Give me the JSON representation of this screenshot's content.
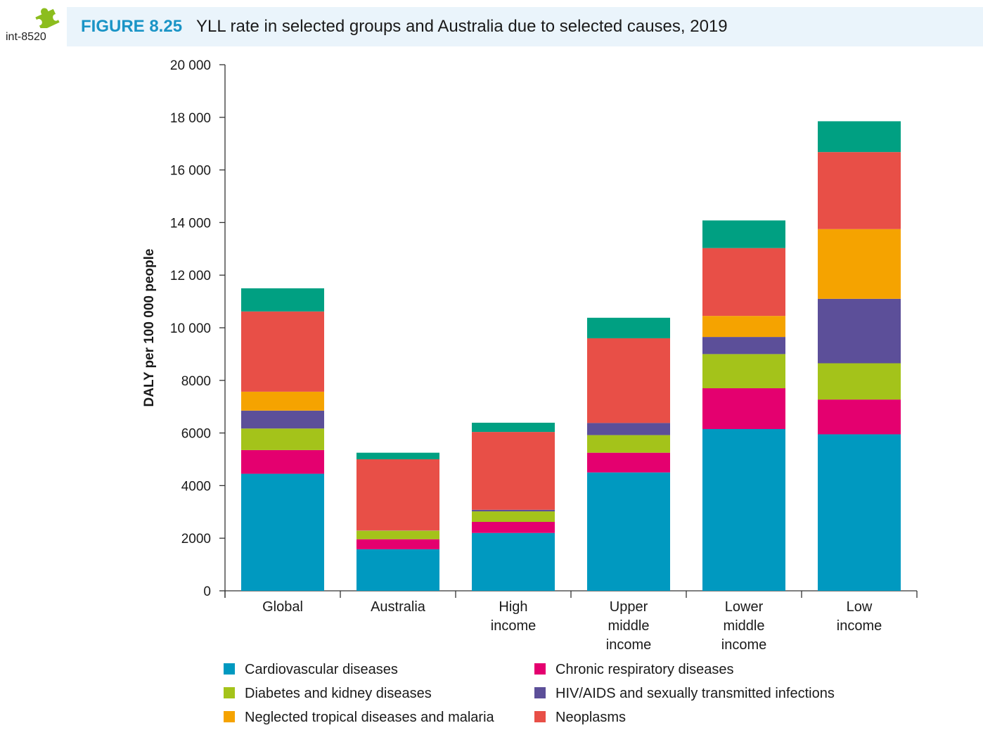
{
  "badge": {
    "label": "int-8520",
    "icon": "puzzle-piece-icon",
    "color": "#8cbd1e"
  },
  "figure": {
    "number": "FIGURE 8.25",
    "title": "YLL rate in selected groups and Australia due to selected causes, 2019"
  },
  "chart_data": {
    "type": "bar",
    "stacked": true,
    "ylabel": "DALY per 100 000 people",
    "xlabel": "",
    "ylim": [
      0,
      20000
    ],
    "yticks": [
      0,
      2000,
      4000,
      6000,
      8000,
      10000,
      12000,
      14000,
      16000,
      18000,
      20000
    ],
    "ytick_labels": [
      "0",
      "2000",
      "4000",
      "6000",
      "8000",
      "10 000",
      "12 000",
      "14 000",
      "16 000",
      "18 000",
      "20 000"
    ],
    "grid": false,
    "legend_position": "bottom",
    "categories": [
      [
        "Global"
      ],
      [
        "Australia"
      ],
      [
        "High",
        "income"
      ],
      [
        "Upper",
        "middle",
        "income"
      ],
      [
        "Lower",
        "middle",
        "income"
      ],
      [
        "Low",
        "income"
      ]
    ],
    "series": [
      {
        "name": "Cardiovascular diseases",
        "color": "#0099c0",
        "values": [
          4450,
          1580,
          2200,
          4500,
          6150,
          5950
        ]
      },
      {
        "name": "Chronic respiratory diseases",
        "color": "#e4006f",
        "values": [
          900,
          380,
          420,
          750,
          1550,
          1320
        ]
      },
      {
        "name": "Diabetes and kidney diseases",
        "color": "#a4c31a",
        "values": [
          820,
          320,
          400,
          670,
          1300,
          1380
        ]
      },
      {
        "name": "HIV/AIDS and sexually transmitted infections",
        "color": "#5c4f99",
        "values": [
          680,
          10,
          60,
          460,
          650,
          2450
        ]
      },
      {
        "name": "Neglected tropical diseases and malaria",
        "color": "#f5a300",
        "values": [
          720,
          10,
          0,
          0,
          800,
          2650
        ]
      },
      {
        "name": "Neoplasms",
        "color": "#e84f47",
        "values": [
          3050,
          2700,
          2960,
          3220,
          2580,
          2930
        ]
      },
      {
        "name": "",
        "color": "#00a082",
        "values": [
          880,
          250,
          350,
          780,
          1050,
          1170
        ]
      }
    ]
  }
}
